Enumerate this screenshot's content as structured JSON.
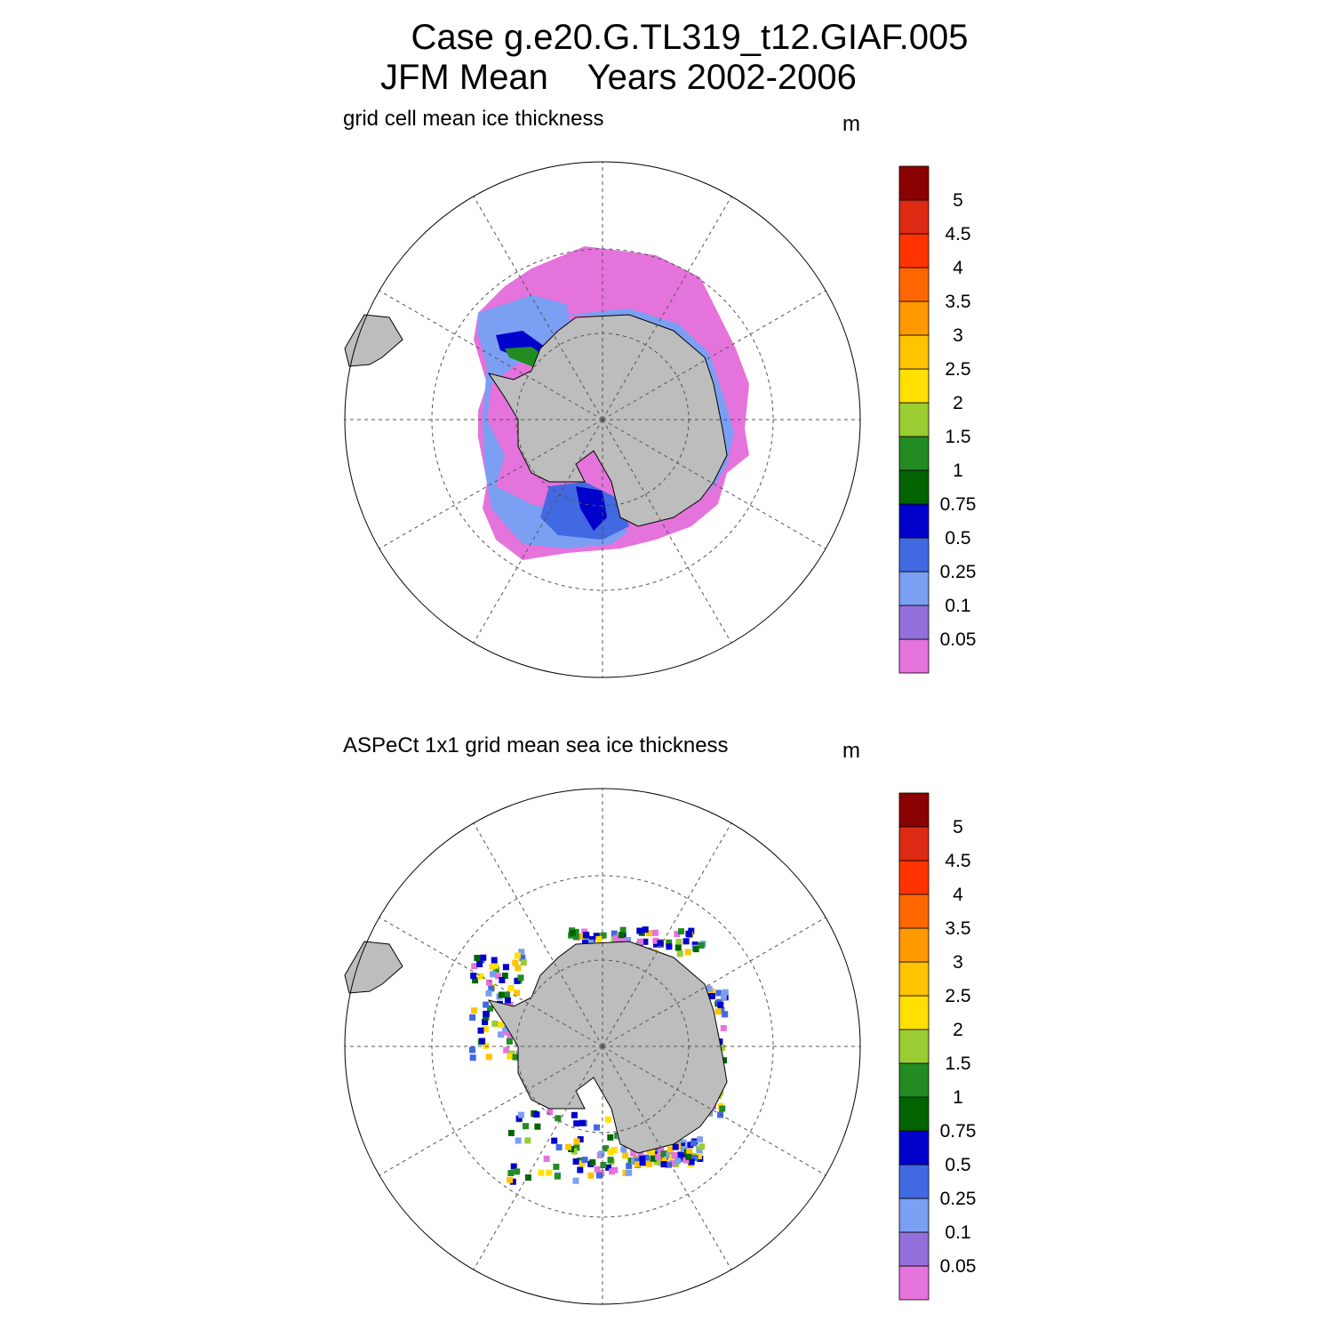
{
  "header": {
    "title": "Case g.e20.G.TL319_t12.GIAF.005",
    "subtitle": "JFM Mean    Years 2002-2006"
  },
  "panels": [
    {
      "subtitle": "grid cell mean ice thickness",
      "units": "m",
      "colorbar": {
        "levels": [
          0.05,
          0.1,
          0.25,
          0.5,
          0.75,
          1,
          1.5,
          2,
          2.5,
          3,
          3.5,
          4,
          4.5,
          5
        ],
        "colors": [
          "#e573dc",
          "#9370db",
          "#7b9ff2",
          "#4169e1",
          "#0000cd",
          "#006400",
          "#228b22",
          "#9acd32",
          "#ffe000",
          "#ffc300",
          "#ff9900",
          "#ff6600",
          "#ff3300",
          "#dd2a12",
          "#8b0000"
        ]
      }
    },
    {
      "subtitle": "ASPeCt 1x1 grid mean sea ice thickness",
      "units": "m",
      "colorbar": {
        "levels": [
          0.05,
          0.1,
          0.25,
          0.5,
          0.75,
          1,
          1.5,
          2,
          2.5,
          3,
          3.5,
          4,
          4.5,
          5
        ],
        "colors": [
          "#e573dc",
          "#9370db",
          "#7b9ff2",
          "#4169e1",
          "#0000cd",
          "#006400",
          "#228b22",
          "#9acd32",
          "#ffe000",
          "#ffc300",
          "#ff9900",
          "#ff6600",
          "#ff3300",
          "#dd2a12",
          "#8b0000"
        ]
      }
    }
  ]
}
